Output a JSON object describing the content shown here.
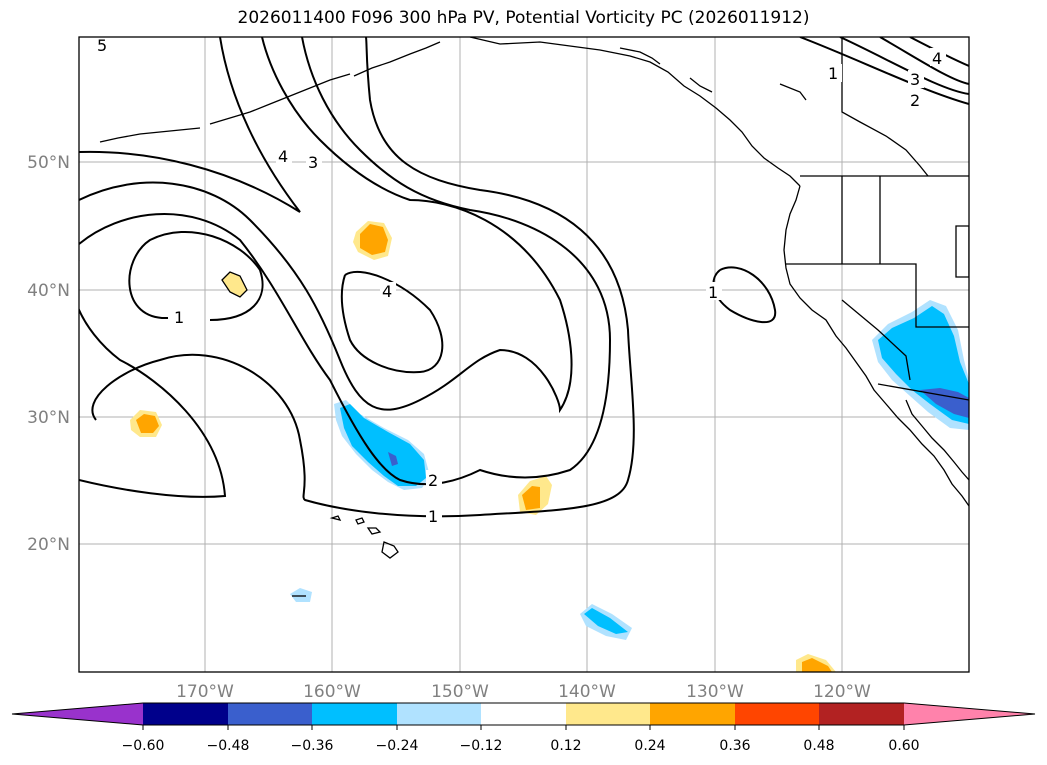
{
  "title": "2026011400 F096 300 hPa PV, Potential Vorticity PC (2026011912)",
  "map": {
    "lat_labels": [
      "50°N",
      "40°N",
      "30°N",
      "20°N"
    ],
    "lon_labels": [
      "170°W",
      "160°W",
      "150°W",
      "140°W",
      "130°W",
      "120°W"
    ],
    "contour_labels": [
      "5",
      "4",
      "3",
      "1",
      "4",
      "1",
      "2",
      "1",
      "1",
      "3",
      "2",
      "4"
    ],
    "land_color": "#ffffff",
    "grid_color": "#b0b0b0"
  },
  "colorbar": {
    "tick_labels": [
      "−0.60",
      "−0.48",
      "−0.36",
      "−0.24",
      "−0.12",
      "0.12",
      "0.24",
      "0.36",
      "0.48",
      "0.60"
    ],
    "colors": [
      "#9932cc",
      "#00008b",
      "#3a5fcd",
      "#00bfff",
      "#b0e2ff",
      "#ffffff",
      "#ffe88c",
      "#ffa500",
      "#ff4500",
      "#b22222",
      "#ff82ab"
    ]
  }
}
